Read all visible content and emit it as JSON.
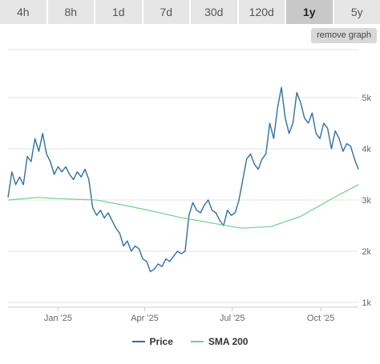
{
  "tabs": [
    {
      "label": "4h",
      "active": false
    },
    {
      "label": "8h",
      "active": false
    },
    {
      "label": "1d",
      "active": false
    },
    {
      "label": "7d",
      "active": false
    },
    {
      "label": "30d",
      "active": false
    },
    {
      "label": "120d",
      "active": false
    },
    {
      "label": "1y",
      "active": true
    },
    {
      "label": "5y",
      "active": false
    }
  ],
  "remove_graph_label": "remove graph",
  "colors": {
    "price": "#2f6fa8",
    "sma": "#6ed08d"
  },
  "chart_data": {
    "type": "line",
    "x_ticks": [
      "Jan '25",
      "Apr '25",
      "Jul '25",
      "Oct '25"
    ],
    "y_ticks": [
      "1k",
      "2k",
      "3k",
      "4k",
      "5k"
    ],
    "ylim": [
      1000,
      5000
    ],
    "grid": true,
    "legend_position": "bottom",
    "series": [
      {
        "name": "Price",
        "x": [
          "2024-11-10",
          "2024-11-14",
          "2024-11-18",
          "2024-11-22",
          "2024-11-26",
          "2024-11-30",
          "2024-12-04",
          "2024-12-08",
          "2024-12-12",
          "2024-12-16",
          "2024-12-20",
          "2024-12-24",
          "2024-12-28",
          "2025-01-01",
          "2025-01-05",
          "2025-01-09",
          "2025-01-13",
          "2025-01-17",
          "2025-01-21",
          "2025-01-25",
          "2025-01-29",
          "2025-02-02",
          "2025-02-06",
          "2025-02-10",
          "2025-02-14",
          "2025-02-18",
          "2025-02-22",
          "2025-02-26",
          "2025-03-02",
          "2025-03-06",
          "2025-03-10",
          "2025-03-14",
          "2025-03-18",
          "2025-03-22",
          "2025-03-26",
          "2025-03-30",
          "2025-04-03",
          "2025-04-07",
          "2025-04-11",
          "2025-04-15",
          "2025-04-19",
          "2025-04-23",
          "2025-04-27",
          "2025-05-01",
          "2025-05-05",
          "2025-05-09",
          "2025-05-13",
          "2025-05-17",
          "2025-05-21",
          "2025-05-25",
          "2025-05-29",
          "2025-06-02",
          "2025-06-06",
          "2025-06-10",
          "2025-06-14",
          "2025-06-18",
          "2025-06-22",
          "2025-06-26",
          "2025-06-30",
          "2025-07-04",
          "2025-07-08",
          "2025-07-12",
          "2025-07-16",
          "2025-07-20",
          "2025-07-24",
          "2025-07-28",
          "2025-08-01",
          "2025-08-05",
          "2025-08-09",
          "2025-08-13",
          "2025-08-17",
          "2025-08-21",
          "2025-08-25",
          "2025-08-29",
          "2025-09-02",
          "2025-09-06",
          "2025-09-10",
          "2025-09-14",
          "2025-09-18",
          "2025-09-22",
          "2025-09-26",
          "2025-09-30",
          "2025-10-04",
          "2025-10-08",
          "2025-10-12",
          "2025-10-16",
          "2025-10-20",
          "2025-10-24",
          "2025-10-28",
          "2025-11-01",
          "2025-11-05",
          "2025-11-09"
        ],
        "y": [
          3050,
          3550,
          3300,
          3450,
          3300,
          3850,
          3750,
          4200,
          3950,
          4300,
          3900,
          3750,
          3500,
          3650,
          3550,
          3650,
          3500,
          3400,
          3550,
          3450,
          3600,
          3400,
          2850,
          2700,
          2800,
          2650,
          2750,
          2600,
          2450,
          2350,
          2100,
          2200,
          2000,
          2100,
          2050,
          1850,
          1800,
          1600,
          1650,
          1750,
          1700,
          1850,
          1800,
          1900,
          2000,
          1950,
          2000,
          2700,
          2950,
          2800,
          2750,
          2900,
          3000,
          2800,
          2750,
          2600,
          2500,
          2800,
          2700,
          2750,
          3000,
          3400,
          3800,
          3900,
          3700,
          3600,
          3800,
          3900,
          4500,
          4200,
          4800,
          5200,
          4600,
          4300,
          4500,
          5100,
          4900,
          4600,
          4500,
          4700,
          4300,
          4200,
          4500,
          4400,
          4000,
          4350,
          4200,
          3950,
          4100,
          4050,
          3800,
          3600
        ]
      },
      {
        "name": "SMA 200",
        "x": [
          "2024-11-10",
          "2024-12-10",
          "2025-01-10",
          "2025-02-10",
          "2025-03-10",
          "2025-04-10",
          "2025-05-10",
          "2025-06-10",
          "2025-07-10",
          "2025-08-10",
          "2025-09-10",
          "2025-10-10",
          "2025-11-09"
        ],
        "y": [
          3000,
          3050,
          3020,
          3000,
          2900,
          2780,
          2650,
          2550,
          2450,
          2480,
          2680,
          3000,
          3300
        ]
      }
    ]
  }
}
